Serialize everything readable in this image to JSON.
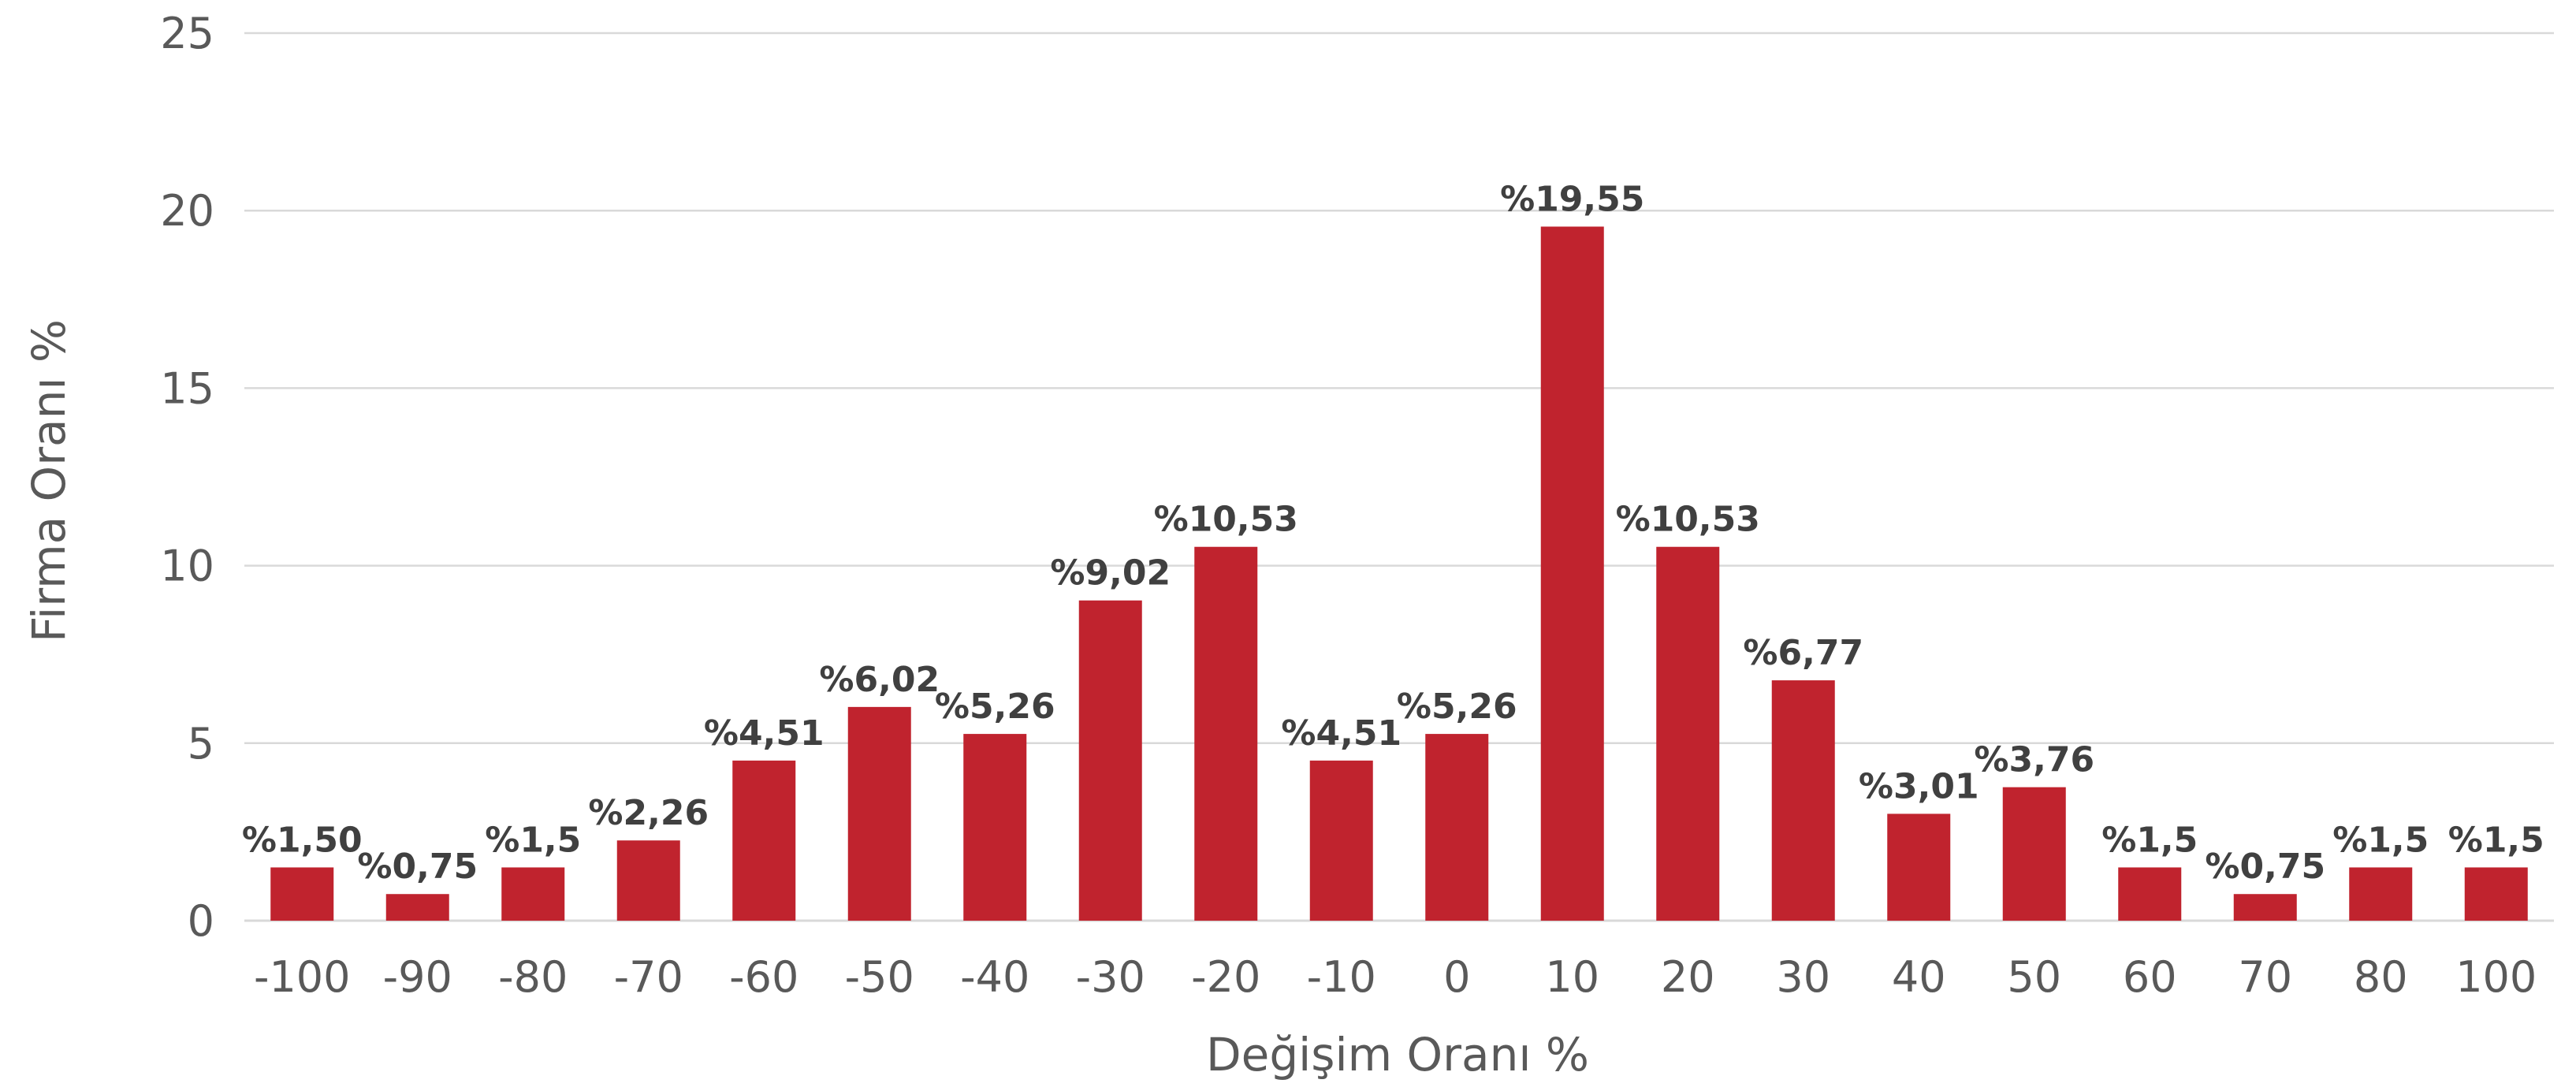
{
  "chart_data": {
    "type": "bar",
    "xlabel": "Değişim Oranı %",
    "ylabel": "Firma Oranı %",
    "ylim": [
      0,
      25
    ],
    "yticks": [
      "0",
      "5",
      "10",
      "15",
      "20",
      "25"
    ],
    "categories": [
      "-100",
      "-90",
      "-80",
      "-70",
      "-60",
      "-50",
      "-40",
      "-30",
      "-20",
      "-10",
      "0",
      "10",
      "20",
      "30",
      "40",
      "50",
      "60",
      "70",
      "80",
      "100"
    ],
    "values": [
      1.5,
      0.75,
      1.5,
      2.26,
      4.51,
      6.02,
      5.26,
      9.02,
      10.53,
      4.51,
      5.26,
      19.55,
      10.53,
      6.77,
      3.01,
      3.76,
      1.5,
      0.75,
      1.5,
      1.5
    ],
    "data_labels": [
      "%1,50",
      "%0,75",
      "%1,5",
      "%2,26",
      "%4,51",
      "%6,02",
      "%5,26",
      "%9,02",
      "%10,53",
      "%4,51",
      "%5,26",
      "%19,55",
      "%10,53",
      "%6,77",
      "%3,01",
      "%3,76",
      "%1,5",
      "%0,75",
      "%1,5",
      "%1,5"
    ],
    "bar_color": "#c0232e",
    "grid": true,
    "legend": "none"
  }
}
